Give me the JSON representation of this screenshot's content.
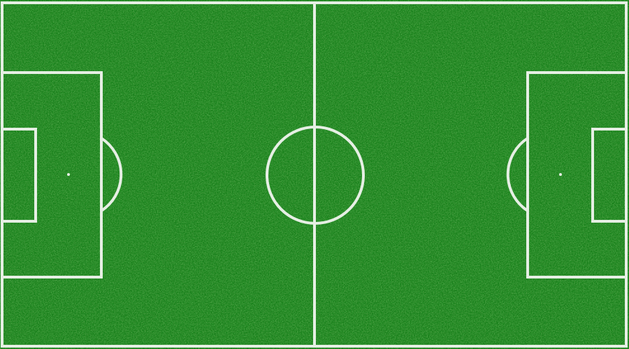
{
  "pitch": {
    "surface": "grass",
    "colors": {
      "grass_base": "#17801a",
      "grass_dark": "#0b5a0d",
      "grass_light": "#2ea82c",
      "line": "#e6efe4"
    },
    "markings": [
      "touchline",
      "halfway-line",
      "center-circle",
      "left-penalty-area",
      "left-goal-area",
      "left-penalty-spot",
      "left-penalty-arc",
      "right-penalty-area",
      "right-goal-area",
      "right-penalty-spot",
      "right-penalty-arc"
    ]
  }
}
